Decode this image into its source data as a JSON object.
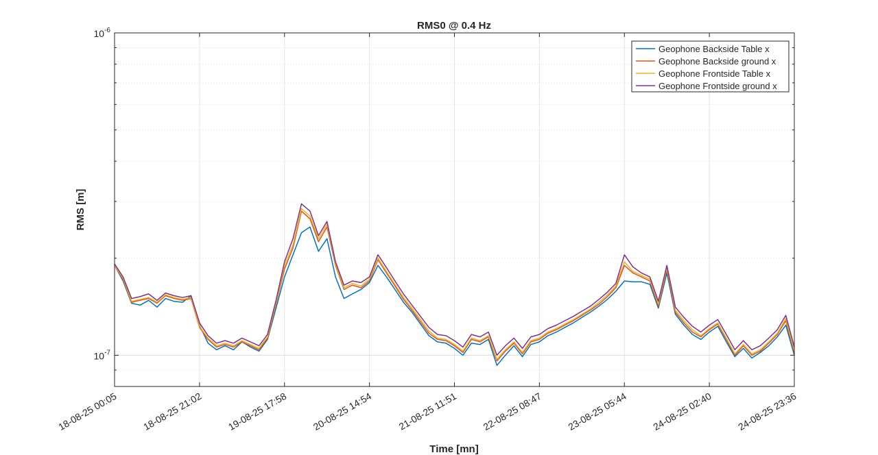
{
  "chart_data": {
    "type": "line",
    "title": "RMS0 @ 0.4 Hz",
    "xlabel": "Time [mn]",
    "ylabel": "RMS [m]",
    "yscale": "log",
    "ylim": [
      8e-08,
      1e-06
    ],
    "yticks": [
      {
        "value": 1e-07,
        "base": "10",
        "exp": "-7"
      },
      {
        "value": 1e-06,
        "base": "10",
        "exp": "-6"
      }
    ],
    "xticks": [
      "18-08-25 00:05",
      "18-08-25 21:02",
      "19-08-25 17:58",
      "20-08-25 14:54",
      "21-08-25 11:51",
      "22-08-25 08:47",
      "23-08-25 05:44",
      "24-08-25 02:40",
      "24-08-25 23:36"
    ],
    "grid": true,
    "legend_position": "top-right",
    "x": [
      0,
      0.1,
      0.2,
      0.3,
      0.4,
      0.5,
      0.6,
      0.7,
      0.8,
      0.9,
      1.0,
      1.1,
      1.2,
      1.3,
      1.4,
      1.5,
      1.6,
      1.7,
      1.8,
      1.9,
      2.0,
      2.1,
      2.2,
      2.3,
      2.4,
      2.5,
      2.6,
      2.7,
      2.8,
      2.9,
      3.0,
      3.1,
      3.2,
      3.3,
      3.4,
      3.5,
      3.6,
      3.7,
      3.8,
      3.9,
      4.0,
      4.1,
      4.2,
      4.3,
      4.4,
      4.5,
      4.6,
      4.7,
      4.8,
      4.9,
      5.0,
      5.1,
      5.2,
      5.3,
      5.4,
      5.5,
      5.6,
      5.7,
      5.8,
      5.9,
      6.0,
      6.1,
      6.2,
      6.3,
      6.4,
      6.5,
      6.6,
      6.7,
      6.8,
      6.9,
      7.0,
      7.1,
      7.2,
      7.3,
      7.4,
      7.5,
      7.6,
      7.7,
      7.8,
      7.9,
      8.0
    ],
    "series": [
      {
        "name": "Geophone Backside Table x",
        "color": "#0072BD",
        "values": [
          1.9,
          1.7,
          1.45,
          1.43,
          1.48,
          1.41,
          1.5,
          1.47,
          1.46,
          1.53,
          1.24,
          1.09,
          1.04,
          1.07,
          1.04,
          1.1,
          1.06,
          1.03,
          1.12,
          1.4,
          1.75,
          2.05,
          2.4,
          2.5,
          2.1,
          2.3,
          1.75,
          1.5,
          1.55,
          1.6,
          1.68,
          1.9,
          1.75,
          1.6,
          1.46,
          1.36,
          1.25,
          1.15,
          1.1,
          1.09,
          1.05,
          1.0,
          1.09,
          1.08,
          1.12,
          0.93,
          1.0,
          1.07,
          0.99,
          1.08,
          1.1,
          1.15,
          1.18,
          1.22,
          1.26,
          1.31,
          1.36,
          1.42,
          1.49,
          1.58,
          1.7,
          1.69,
          1.69,
          1.66,
          1.4,
          1.8,
          1.34,
          1.24,
          1.16,
          1.12,
          1.18,
          1.23,
          1.1,
          0.99,
          1.05,
          0.98,
          1.02,
          1.07,
          1.14,
          1.24,
          1.0
        ]
      },
      {
        "name": "Geophone Backside ground x",
        "color": "#D95319",
        "values": [
          1.9,
          1.72,
          1.46,
          1.48,
          1.5,
          1.45,
          1.53,
          1.5,
          1.48,
          1.5,
          1.22,
          1.12,
          1.06,
          1.08,
          1.06,
          1.1,
          1.07,
          1.04,
          1.13,
          1.44,
          1.85,
          2.15,
          2.8,
          2.65,
          2.25,
          2.5,
          1.9,
          1.6,
          1.65,
          1.62,
          1.7,
          1.98,
          1.8,
          1.64,
          1.49,
          1.38,
          1.27,
          1.17,
          1.12,
          1.11,
          1.07,
          1.02,
          1.12,
          1.1,
          1.14,
          0.96,
          1.03,
          1.09,
          1.01,
          1.1,
          1.12,
          1.17,
          1.2,
          1.24,
          1.28,
          1.33,
          1.38,
          1.44,
          1.52,
          1.62,
          1.9,
          1.8,
          1.75,
          1.7,
          1.42,
          1.85,
          1.36,
          1.26,
          1.18,
          1.14,
          1.2,
          1.25,
          1.12,
          1.0,
          1.07,
          1.0,
          1.03,
          1.09,
          1.16,
          1.28,
          1.02
        ]
      },
      {
        "name": "Geophone Frontside Table x",
        "color": "#EDB120",
        "values": [
          1.9,
          1.73,
          1.47,
          1.49,
          1.51,
          1.46,
          1.54,
          1.51,
          1.49,
          1.51,
          1.23,
          1.13,
          1.07,
          1.09,
          1.07,
          1.11,
          1.08,
          1.05,
          1.14,
          1.45,
          1.9,
          2.2,
          2.85,
          2.7,
          2.3,
          2.55,
          1.92,
          1.62,
          1.67,
          1.64,
          1.72,
          2.0,
          1.82,
          1.66,
          1.51,
          1.4,
          1.29,
          1.19,
          1.13,
          1.12,
          1.08,
          1.03,
          1.13,
          1.11,
          1.15,
          0.97,
          1.04,
          1.1,
          1.02,
          1.11,
          1.13,
          1.18,
          1.21,
          1.25,
          1.29,
          1.34,
          1.39,
          1.46,
          1.54,
          1.64,
          1.95,
          1.82,
          1.77,
          1.72,
          1.44,
          1.87,
          1.38,
          1.28,
          1.2,
          1.15,
          1.21,
          1.26,
          1.13,
          1.01,
          1.08,
          1.01,
          1.04,
          1.1,
          1.17,
          1.3,
          1.03
        ]
      },
      {
        "name": "Geophone Frontside ground x",
        "color": "#7E2F8E",
        "values": [
          1.92,
          1.75,
          1.5,
          1.52,
          1.55,
          1.48,
          1.56,
          1.53,
          1.51,
          1.53,
          1.26,
          1.15,
          1.09,
          1.11,
          1.09,
          1.13,
          1.1,
          1.07,
          1.16,
          1.48,
          1.95,
          2.3,
          2.95,
          2.8,
          2.35,
          2.6,
          1.95,
          1.65,
          1.7,
          1.68,
          1.75,
          2.05,
          1.87,
          1.7,
          1.55,
          1.43,
          1.32,
          1.22,
          1.16,
          1.15,
          1.11,
          1.06,
          1.16,
          1.14,
          1.18,
          1.0,
          1.07,
          1.13,
          1.05,
          1.14,
          1.16,
          1.21,
          1.24,
          1.28,
          1.32,
          1.37,
          1.42,
          1.49,
          1.57,
          1.67,
          2.05,
          1.88,
          1.8,
          1.75,
          1.47,
          1.9,
          1.41,
          1.31,
          1.23,
          1.18,
          1.24,
          1.29,
          1.16,
          1.04,
          1.11,
          1.04,
          1.07,
          1.13,
          1.2,
          1.33,
          1.06
        ]
      }
    ]
  }
}
